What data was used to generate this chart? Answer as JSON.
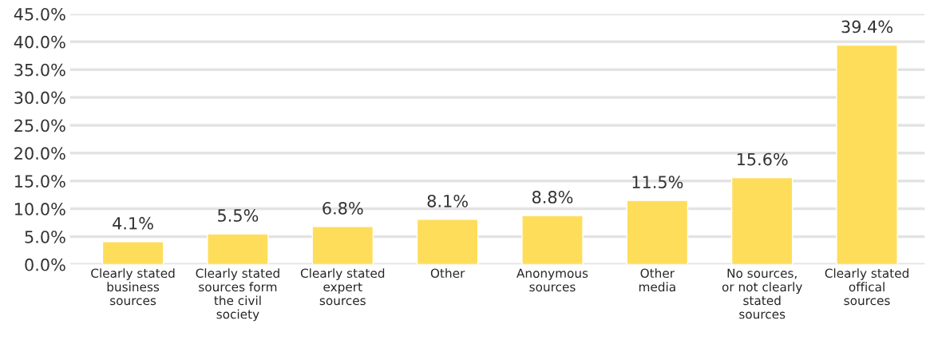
{
  "chart_data": {
    "type": "bar",
    "categories": [
      "Clearly stated\nbusiness\nsources",
      "Clearly stated\nsources form\nthe civil\nsociety",
      "Clearly stated\nexpert\nsources",
      "Other",
      "Anonymous\nsources",
      "Other\nmedia",
      "No sources,\nor not clearly\nstated\nsources",
      "Clearly stated\noffical\nsources"
    ],
    "values": [
      4.1,
      5.5,
      6.8,
      8.1,
      8.8,
      11.5,
      15.6,
      39.4
    ],
    "value_labels": [
      "4.1%",
      "5.5%",
      "6.8%",
      "8.1%",
      "8.8%",
      "11.5%",
      "15.6%",
      "39.4%"
    ],
    "color": "#fedd5a",
    "ylim": [
      0,
      45
    ],
    "yticks": [
      {
        "value": 0,
        "label": "0.0%"
      },
      {
        "value": 5,
        "label": "5.0%"
      },
      {
        "value": 10,
        "label": "10.0%"
      },
      {
        "value": 15,
        "label": "15.0%"
      },
      {
        "value": 20,
        "label": "20.0%"
      },
      {
        "value": 25,
        "label": "25.0%"
      },
      {
        "value": 30,
        "label": "30.0%"
      },
      {
        "value": 35,
        "label": "35.0%"
      },
      {
        "value": 40,
        "label": "40.0%"
      },
      {
        "value": 45,
        "label": "45.0%"
      }
    ],
    "grid": "y"
  }
}
